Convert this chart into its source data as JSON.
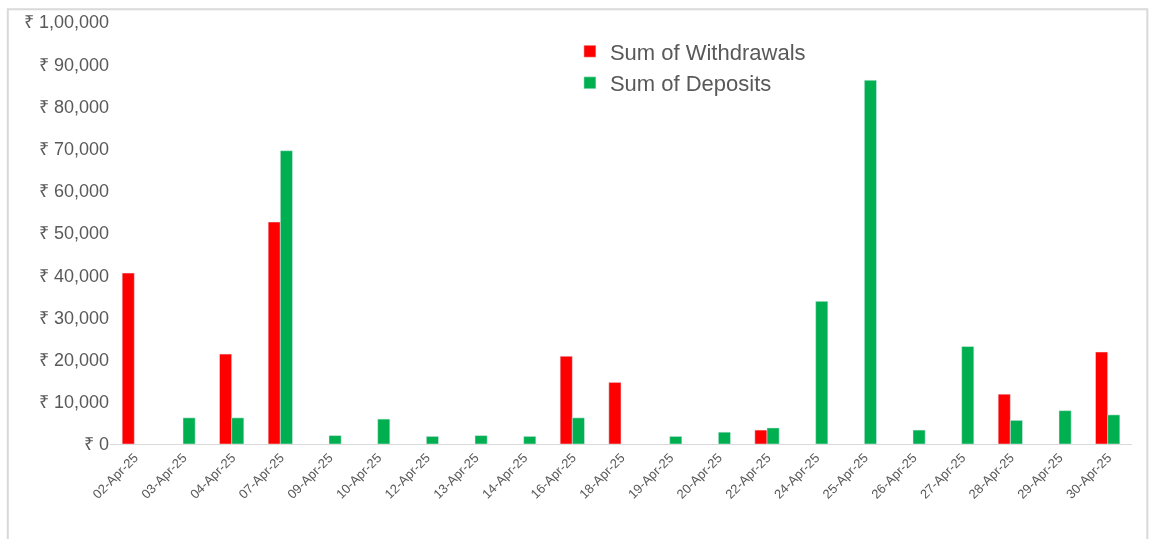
{
  "chart_data": {
    "type": "bar",
    "categories": [
      "02-Apr-25",
      "03-Apr-25",
      "04-Apr-25",
      "07-Apr-25",
      "09-Apr-25",
      "10-Apr-25",
      "12-Apr-25",
      "13-Apr-25",
      "14-Apr-25",
      "16-Apr-25",
      "18-Apr-25",
      "19-Apr-25",
      "20-Apr-25",
      "22-Apr-25",
      "24-Apr-25",
      "25-Apr-25",
      "26-Apr-25",
      "27-Apr-25",
      "28-Apr-25",
      "29-Apr-25",
      "30-Apr-25"
    ],
    "series": [
      {
        "name": "Sum of Withdrawals",
        "color": "#ff0000",
        "values": [
          40500,
          null,
          21300,
          52600,
          null,
          null,
          null,
          null,
          null,
          20800,
          14600,
          null,
          null,
          3300,
          null,
          null,
          null,
          null,
          11800,
          null,
          21800
        ]
      },
      {
        "name": "Sum of Deposits",
        "color": "#00b050",
        "values": [
          null,
          6200,
          6200,
          69500,
          2000,
          5900,
          1800,
          2000,
          1800,
          6200,
          null,
          1800,
          2800,
          3800,
          33800,
          86200,
          3300,
          23100,
          5600,
          7900,
          6900
        ]
      }
    ],
    "ylim": [
      0,
      100000
    ],
    "yticks": [
      {
        "value": 0,
        "label": "₹ 0"
      },
      {
        "value": 10000,
        "label": "₹ 10,000"
      },
      {
        "value": 20000,
        "label": "₹ 20,000"
      },
      {
        "value": 30000,
        "label": "₹ 30,000"
      },
      {
        "value": 40000,
        "label": "₹ 40,000"
      },
      {
        "value": 50000,
        "label": "₹ 50,000"
      },
      {
        "value": 60000,
        "label": "₹ 60,000"
      },
      {
        "value": 70000,
        "label": "₹ 70,000"
      },
      {
        "value": 80000,
        "label": "₹ 80,000"
      },
      {
        "value": 90000,
        "label": "₹ 90,000"
      },
      {
        "value": 100000,
        "label": "₹ 1,00,000"
      }
    ],
    "grid": false,
    "legend": "top"
  }
}
